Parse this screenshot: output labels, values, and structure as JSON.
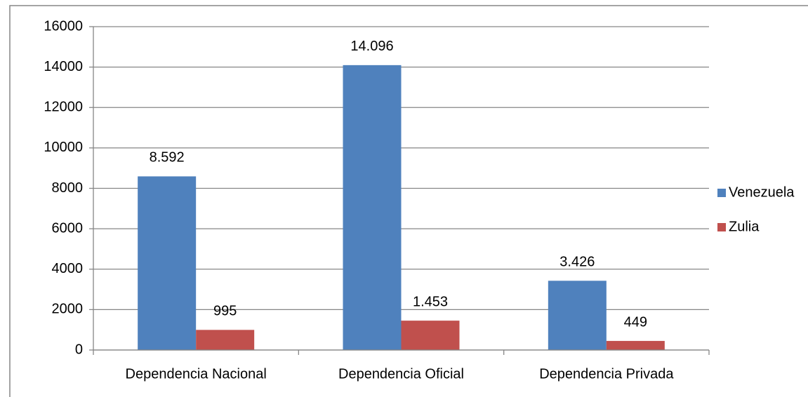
{
  "chart_data": {
    "type": "bar",
    "categories": [
      "Dependencia Nacional",
      "Dependencia Oficial",
      "Dependencia Privada"
    ],
    "series": [
      {
        "name": "Venezuela",
        "color": "#4f81bd",
        "values": [
          8592,
          14096,
          3426
        ],
        "value_labels": [
          "8.592",
          "14.096",
          "3.426"
        ]
      },
      {
        "name": "Zulia",
        "color": "#c0504d",
        "values": [
          995,
          1453,
          449
        ],
        "value_labels": [
          "995",
          "1.453",
          "449"
        ]
      }
    ],
    "ylim": [
      0,
      16000
    ],
    "yticks": [
      0,
      2000,
      4000,
      6000,
      8000,
      10000,
      12000,
      14000,
      16000
    ],
    "grid": true,
    "legend": "right"
  }
}
